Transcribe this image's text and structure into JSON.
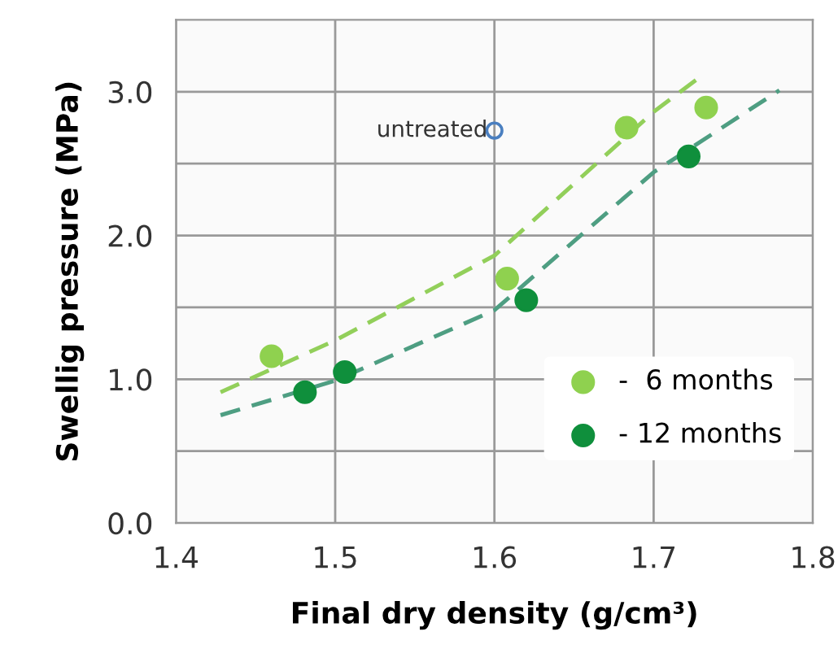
{
  "chart_data": {
    "type": "scatter",
    "xlabel": "Final dry density (g/cm³)",
    "ylabel": "Swellig pressure (MPa)",
    "xlim": [
      1.4,
      1.8
    ],
    "xticks": [
      1.4,
      1.5,
      1.6,
      1.7,
      1.8
    ],
    "ylim": [
      0,
      3.5
    ],
    "yticks": [
      {
        "value": 0,
        "label": "0.0"
      },
      {
        "value": 0.5,
        "label": null
      },
      {
        "value": 1,
        "label": "1.0"
      },
      {
        "value": 1.5,
        "label": null
      },
      {
        "value": 2,
        "label": "2.0"
      },
      {
        "value": 2.5,
        "label": null
      },
      {
        "value": 3,
        "label": "3.0"
      }
    ],
    "grid": true,
    "legend": "bottom right",
    "marker": "circle",
    "annotations": [
      {
        "text": "untreated",
        "x": 1.6,
        "y": 2.73
      }
    ],
    "series": [
      {
        "type": "line",
        "line_style": "dashed",
        "marker": "none",
        "color": "#92cf5a",
        "x": [
          1.428,
          1.5,
          1.6,
          1.7,
          1.73
        ],
        "values": [
          0.91,
          1.27,
          1.86,
          2.86,
          3.11
        ]
      },
      {
        "type": "line",
        "line_style": "dashed",
        "marker": "none",
        "color": "#4e9e82",
        "x": [
          1.428,
          1.5,
          1.6,
          1.7,
          1.779
        ],
        "values": [
          0.75,
          0.99,
          1.48,
          2.44,
          3.01
        ]
      },
      {
        "name": "-  6 months",
        "color": "#8fd14f",
        "x": [
          1.46,
          1.608,
          1.683,
          1.733
        ],
        "values": [
          1.16,
          1.7,
          2.75,
          2.89
        ]
      },
      {
        "name": "- 12 months",
        "color": "#0f8f3c",
        "x": [
          1.481,
          1.506,
          1.62,
          1.722
        ],
        "values": [
          0.91,
          1.05,
          1.55,
          2.55
        ]
      },
      {
        "color": "#4a7fc0",
        "x": [
          1.6
        ],
        "values": [
          2.73
        ]
      }
    ]
  }
}
